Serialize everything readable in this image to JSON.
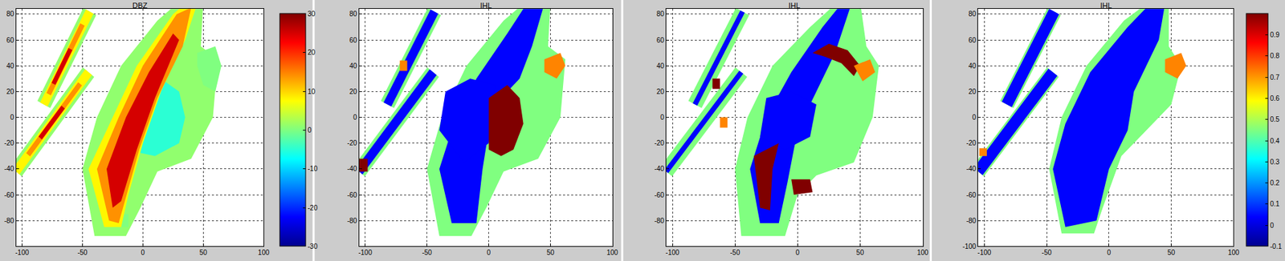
{
  "chart_data": [
    {
      "type": "polygon",
      "title": "DBZ",
      "xlim": [
        -105,
        100
      ],
      "ylim": [
        -100,
        84
      ],
      "xticks": [
        -100,
        -50,
        0,
        50,
        100
      ],
      "yticks": [
        -80,
        -60,
        -40,
        -20,
        0,
        20,
        40,
        60,
        80
      ],
      "grid": true,
      "color_range": [
        -30,
        30
      ],
      "colorbar": {
        "ticks": [
          -30,
          -20,
          -10,
          0,
          10,
          20,
          30
        ]
      },
      "regions": [
        {
          "value": 1,
          "x": [
            -100.3,
            -40.3,
            -49.7,
            -109.7
          ],
          "y": [
            -45.7,
            31.3,
            38.7,
            -38.3
          ]
        },
        {
          "value": 1,
          "x": [
            -76.7,
            -38.7,
            -49.3,
            -87.3
          ],
          "y": [
            7.2,
            79.2,
            84.8,
            12.8
          ]
        },
        {
          "value": 1,
          "x": [
            -40,
            -50,
            -38,
            -18,
            12,
            33,
            50,
            48,
            62,
            58,
            40,
            12,
            -2,
            -14
          ],
          "y": [
            -92,
            -40,
            0,
            40,
            75,
            92,
            90,
            55,
            45,
            0,
            -32,
            -42,
            -70,
            -92
          ]
        },
        {
          "value": -5,
          "x": [
            35,
            30,
            15,
            -10,
            -22,
            -15,
            10,
            30
          ],
          "y": [
            0,
            20,
            30,
            25,
            0,
            -25,
            -30,
            -20
          ]
        },
        {
          "value": 0,
          "x": [
            45,
            60,
            65,
            60,
            50,
            45
          ],
          "y": [
            50,
            55,
            40,
            20,
            25,
            40
          ]
        },
        {
          "value": 0,
          "x": [
            -36,
            -25,
            -27,
            -38
          ],
          "y": [
            -52,
            -50,
            -40,
            -42
          ]
        },
        {
          "value": 0,
          "x": [
            -18,
            -12,
            -12,
            -18
          ],
          "y": [
            -85,
            -85,
            -75,
            -75
          ]
        },
        {
          "value": 8,
          "x": [
            -32,
            -45,
            -25,
            -5,
            25,
            35,
            45,
            35,
            15,
            0,
            -12,
            -18
          ],
          "y": [
            -85,
            -40,
            0,
            40,
            80,
            88,
            88,
            60,
            20,
            -20,
            -60,
            -85
          ]
        },
        {
          "value": 8,
          "x": [
            -102.2,
            -42.2,
            -47.8,
            -107.8
          ],
          "y": [
            -44.2,
            32.8,
            37.2,
            -39.8
          ]
        },
        {
          "value": 8,
          "x": [
            -78.9,
            -40.9,
            -47.1,
            -85.1
          ],
          "y": [
            8.4,
            80.4,
            83.6,
            11.6
          ]
        },
        {
          "value": 14,
          "x": [
            -28,
            -38,
            -20,
            0,
            28,
            40,
            33,
            12,
            -3,
            -15,
            -20
          ],
          "y": [
            -80,
            -40,
            0,
            40,
            80,
            85,
            55,
            15,
            -25,
            -65,
            -82
          ]
        },
        {
          "value": 14,
          "x": [
            -93.4,
            -50.4,
            -53.6,
            -96.6
          ],
          "y": [
            -30.2,
            24.8,
            27.2,
            -27.8
          ]
        },
        {
          "value": 14,
          "x": [
            -76.2,
            -48.2,
            -51.8,
            -79.8
          ],
          "y": [
            17.1,
            71.1,
            72.9,
            18.9
          ]
        },
        {
          "value": 25,
          "x": [
            -25,
            -30,
            -14,
            5,
            25,
            30,
            10,
            -5,
            -18
          ],
          "y": [
            -70,
            -40,
            0,
            35,
            65,
            60,
            15,
            -25,
            -65
          ]
        },
        {
          "value": 25,
          "x": [
            -83.6,
            -64.6,
            -67.4,
            -86.4
          ],
          "y": [
            -17.1,
            6.9,
            9.1,
            -14.9
          ]
        },
        {
          "value": 25,
          "x": [
            -72.4,
            -58.4,
            -61.6,
            -75.6
          ],
          "y": [
            25.2,
            52.2,
            53.8,
            26.8
          ]
        }
      ]
    },
    {
      "type": "polygon",
      "title": "IHL",
      "xlim": [
        -105,
        100
      ],
      "ylim": [
        -100,
        84
      ],
      "xticks": [
        -100,
        -50,
        0,
        50,
        100
      ],
      "yticks": [
        -80,
        -60,
        -40,
        -20,
        0,
        20,
        40,
        60,
        80
      ],
      "grid": true,
      "color_range": [
        -0.1,
        1
      ],
      "regions": [
        {
          "value": 0.45,
          "x": [
            -40,
            -50,
            -38,
            -18,
            12,
            33,
            50,
            48,
            62,
            58,
            40,
            12,
            -2,
            -14
          ],
          "y": [
            -92,
            -40,
            0,
            40,
            75,
            92,
            90,
            55,
            45,
            0,
            -32,
            -42,
            -70,
            -92
          ]
        },
        {
          "value": 0.45,
          "x": [
            -100.3,
            -40.3,
            -49.7,
            -109.7
          ],
          "y": [
            -45.7,
            31.3,
            38.7,
            -38.3
          ]
        },
        {
          "value": 0.45,
          "x": [
            -76.7,
            -38.7,
            -49.3,
            -87.3
          ],
          "y": [
            7.2,
            79.2,
            84.8,
            12.8
          ]
        },
        {
          "value": 0.04,
          "x": [
            -102.2,
            -42.2,
            -47.8,
            -107.8
          ],
          "y": [
            -44.2,
            32.8,
            37.2,
            -39.8
          ]
        },
        {
          "value": 0.04,
          "x": [
            -78.9,
            -40.9,
            -47.1,
            -85.1
          ],
          "y": [
            8.4,
            80.4,
            83.6,
            11.6
          ]
        },
        {
          "value": 0.04,
          "x": [
            -30,
            -40,
            -30,
            -10,
            15,
            32,
            45,
            35,
            25,
            10,
            0,
            -5,
            -10
          ],
          "y": [
            -82,
            -40,
            -10,
            30,
            65,
            90,
            88,
            55,
            30,
            15,
            -10,
            -40,
            -82
          ]
        },
        {
          "value": 0.04,
          "x": [
            -40,
            -35,
            -15,
            5,
            0,
            -20
          ],
          "y": [
            -10,
            20,
            30,
            25,
            -20,
            -35
          ]
        },
        {
          "value": 1,
          "x": [
            0,
            0,
            15,
            25,
            28,
            20,
            10
          ],
          "y": [
            -25,
            15,
            25,
            15,
            -5,
            -25,
            -30
          ]
        },
        {
          "value": 0.72,
          "x": [
            45,
            58,
            62,
            55,
            45
          ],
          "y": [
            45,
            50,
            40,
            30,
            35
          ]
        },
        {
          "value": 1,
          "x": [
            -105,
            -98,
            -98,
            -105
          ],
          "y": [
            -42,
            -42,
            -32,
            -32
          ]
        },
        {
          "value": 0.72,
          "x": [
            -72,
            -66,
            -66,
            -72
          ],
          "y": [
            36,
            36,
            44,
            44
          ]
        }
      ]
    },
    {
      "type": "polygon",
      "title": "IHL",
      "xlim": [
        -105,
        100
      ],
      "ylim": [
        -100,
        84
      ],
      "xticks": [
        -100,
        -50,
        0,
        50,
        100
      ],
      "yticks": [
        -80,
        -60,
        -40,
        -20,
        0,
        20,
        40,
        60,
        80
      ],
      "grid": true,
      "color_range": [
        -0.1,
        1
      ],
      "regions": [
        {
          "value": 0.45,
          "x": [
            -45,
            -50,
            -40,
            -20,
            10,
            35,
            50,
            55,
            65,
            60,
            45,
            15,
            0,
            -10
          ],
          "y": [
            -92,
            -40,
            0,
            40,
            70,
            92,
            90,
            55,
            40,
            0,
            -35,
            -45,
            -60,
            -92
          ]
        },
        {
          "value": 0.45,
          "x": [
            -100.3,
            -40.3,
            -49.7,
            -109.7
          ],
          "y": [
            -45.7,
            31.3,
            38.7,
            -38.3
          ]
        },
        {
          "value": 0.45,
          "x": [
            -76.7,
            -38.7,
            -49.3,
            -87.3
          ],
          "y": [
            7.2,
            79.2,
            84.8,
            12.8
          ]
        },
        {
          "value": 0.04,
          "x": [
            -103.4,
            -43.4,
            -46.6,
            -106.6
          ],
          "y": [
            -43.2,
            33.8,
            36.2,
            -40.8
          ]
        },
        {
          "value": 0.04,
          "x": [
            -80.2,
            -42.2,
            -45.8,
            -83.8
          ],
          "y": [
            9.1,
            81.1,
            82.9,
            10.9
          ]
        },
        {
          "value": 0.04,
          "x": [
            -30,
            -38,
            -25,
            -5,
            20,
            35,
            42,
            30,
            15,
            0,
            -8,
            -15
          ],
          "y": [
            -82,
            -40,
            0,
            35,
            70,
            88,
            85,
            50,
            20,
            -10,
            -50,
            -82
          ]
        },
        {
          "value": 0.04,
          "x": [
            -30,
            -25,
            -5,
            15,
            10,
            -10
          ],
          "y": [
            -15,
            15,
            20,
            10,
            -15,
            -25
          ]
        },
        {
          "value": 1,
          "x": [
            12,
            25,
            40,
            50,
            45,
            35,
            22
          ],
          "y": [
            50,
            57,
            52,
            40,
            32,
            42,
            47
          ]
        },
        {
          "value": 1,
          "x": [
            -35,
            -30,
            -22,
            -20,
            -15,
            -25
          ],
          "y": [
            -30,
            -70,
            -72,
            -40,
            -20,
            -25
          ]
        },
        {
          "value": 1,
          "x": [
            -5,
            10,
            12,
            -3
          ],
          "y": [
            -48,
            -48,
            -58,
            -60
          ]
        },
        {
          "value": 1,
          "x": [
            -68,
            -62,
            -62,
            -68
          ],
          "y": [
            22,
            22,
            30,
            30
          ]
        },
        {
          "value": 0.72,
          "x": [
            45,
            58,
            62,
            52
          ],
          "y": [
            40,
            45,
            35,
            28
          ]
        },
        {
          "value": 0.72,
          "x": [
            -62,
            -56,
            -56,
            -62
          ],
          "y": [
            -8,
            -8,
            0,
            0
          ]
        }
      ]
    },
    {
      "type": "polygon",
      "title": "IHL",
      "xlim": [
        -105,
        100
      ],
      "ylim": [
        -100,
        84
      ],
      "xticks": [
        -100,
        -50,
        0,
        50,
        100
      ],
      "yticks": [
        -100,
        -80,
        -60,
        -40,
        -20,
        0,
        20,
        40,
        60,
        80
      ],
      "grid": true,
      "color_range": [
        -0.1,
        1
      ],
      "colorbar": {
        "ticks": [
          -0.1,
          0,
          0.1,
          0.2,
          0.3,
          0.4,
          0.5,
          0.6,
          0.7,
          0.8,
          0.9
        ]
      },
      "regions": [
        {
          "value": 0.45,
          "x": [
            -38,
            -48,
            -38,
            -18,
            12,
            33,
            48,
            48,
            58,
            50,
            30,
            10,
            -5,
            -12
          ],
          "y": [
            -90,
            -40,
            0,
            40,
            75,
            90,
            88,
            55,
            40,
            10,
            -10,
            -30,
            -70,
            -90
          ]
        },
        {
          "value": 0.45,
          "x": [
            -100.3,
            -40.3,
            -49.7,
            -109.7
          ],
          "y": [
            -45.7,
            31.3,
            38.7,
            -38.3
          ]
        },
        {
          "value": 0.45,
          "x": [
            -76.7,
            -38.7,
            -49.3,
            -87.3
          ],
          "y": [
            7.2,
            79.2,
            84.8,
            12.8
          ]
        },
        {
          "value": 0.04,
          "x": [
            -101.4,
            -41.4,
            -48.6,
            -108.6
          ],
          "y": [
            -44.8,
            32.2,
            37.8,
            -39.2
          ]
        },
        {
          "value": 0.04,
          "x": [
            -78,
            -40,
            -48,
            -86
          ],
          "y": [
            7.9,
            79.9,
            84.1,
            12.1
          ]
        },
        {
          "value": 0.04,
          "x": [
            -35,
            -45,
            -35,
            -15,
            15,
            35,
            45,
            40,
            30,
            20,
            15,
            0,
            -10
          ],
          "y": [
            -85,
            -40,
            -5,
            35,
            70,
            90,
            88,
            60,
            40,
            20,
            -10,
            -40,
            -80
          ]
        },
        {
          "value": 0.72,
          "x": [
            45,
            58,
            62,
            55,
            45
          ],
          "y": [
            45,
            50,
            40,
            30,
            35
          ]
        },
        {
          "value": 0.72,
          "x": [
            -104,
            -98,
            -98,
            -104
          ],
          "y": [
            -30,
            -30,
            -24,
            -24
          ]
        }
      ]
    }
  ]
}
